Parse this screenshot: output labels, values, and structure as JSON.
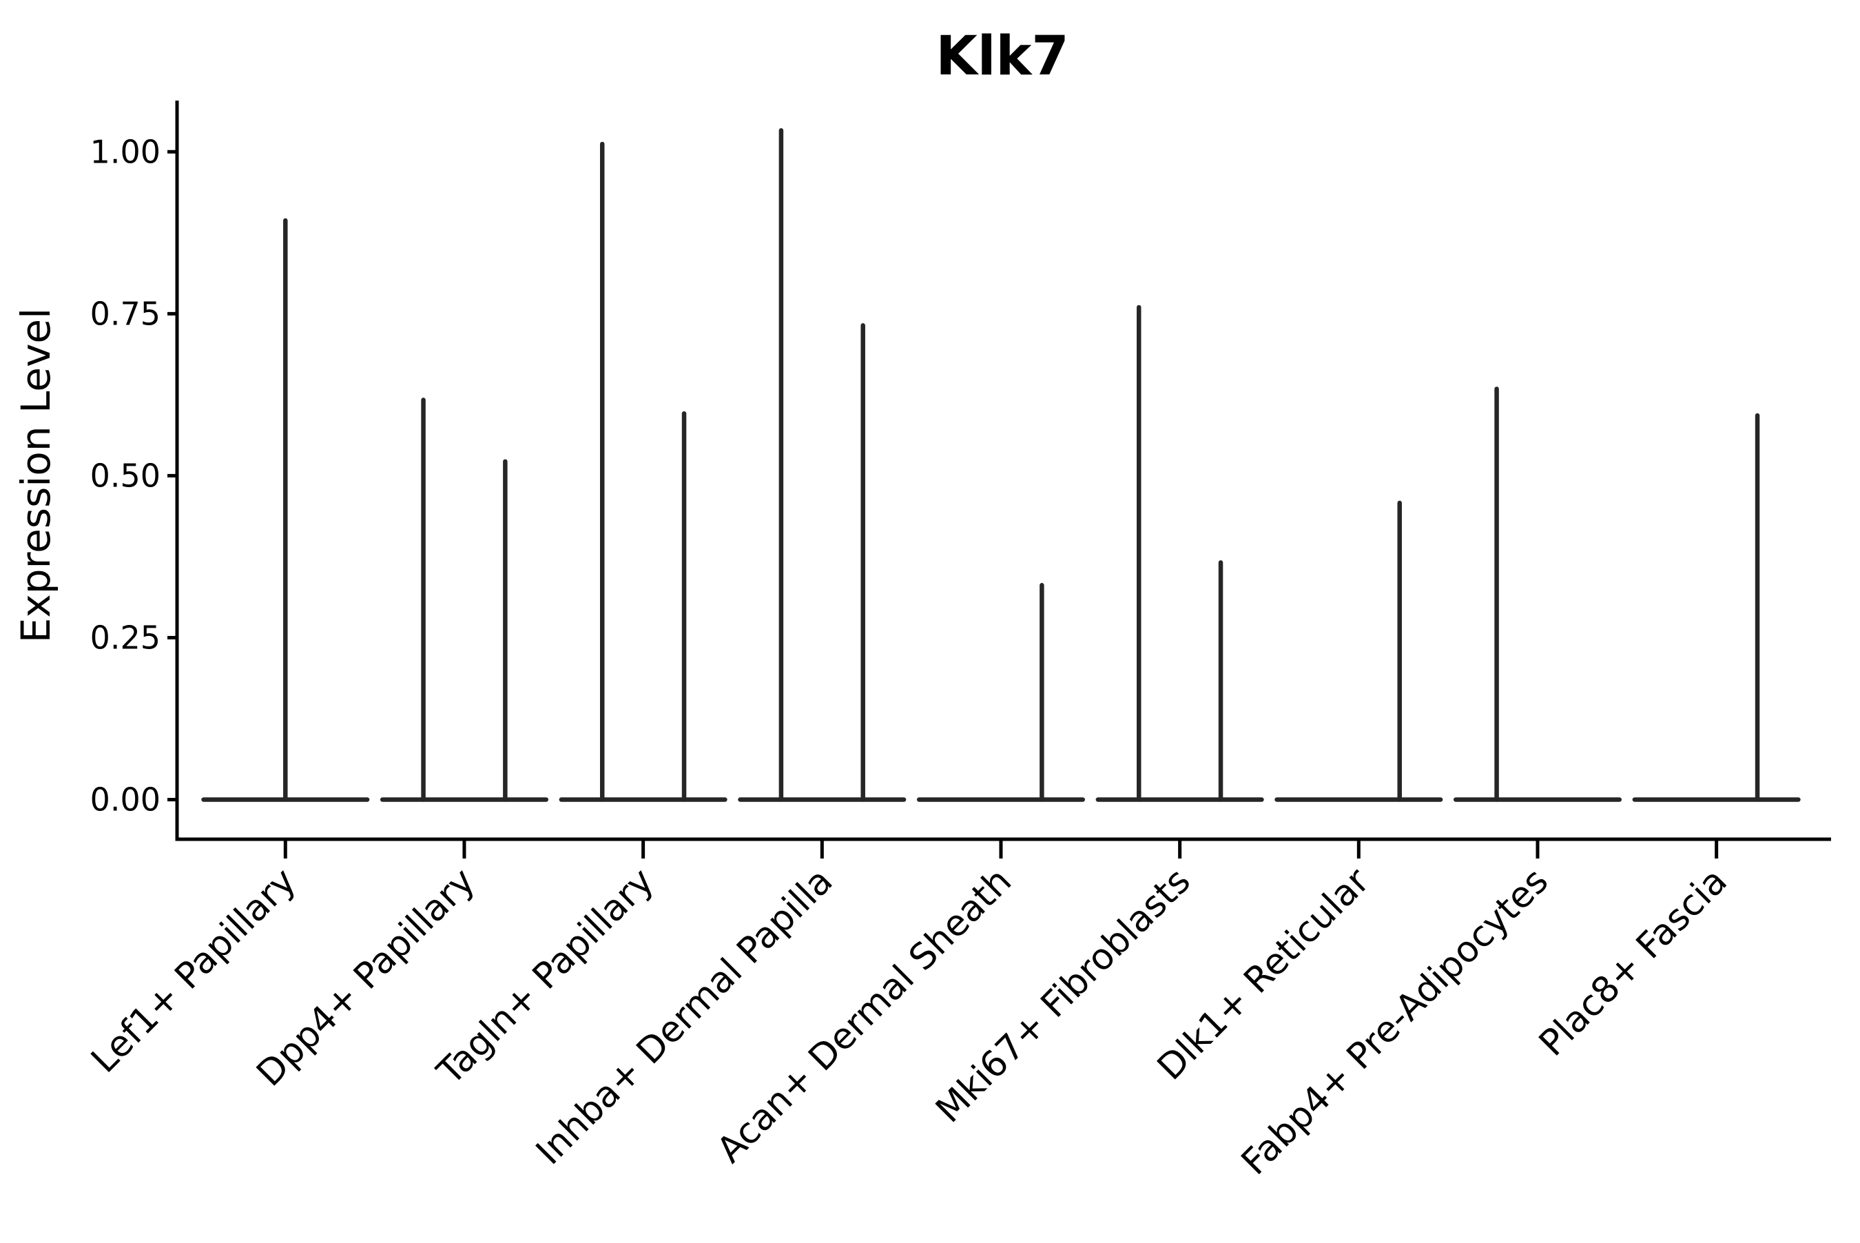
{
  "figure": {
    "background": "#ffffff",
    "axis_color": "#000000",
    "violin_color": "#262626",
    "text_color": "#000000"
  },
  "chart_data": {
    "type": "violin",
    "title": "Klk7",
    "xlabel": "",
    "ylabel": "Expression Level",
    "ylim": [
      -0.06,
      1.08
    ],
    "grid": false,
    "legend": null,
    "yticks": [
      0.0,
      0.25,
      0.5,
      0.75,
      1.0
    ],
    "ytick_labels": [
      "0.00",
      "0.25",
      "0.50",
      "0.75",
      "1.00"
    ],
    "categories": [
      "Lef1+ Papillary",
      "Dpp4+ Papillary",
      "Tagln+ Papillary",
      "Inhba+ Dermal Papilla",
      "Acan+ Dermal Sheath",
      "Mki67+ Fibroblasts",
      "Dlk1+ Reticular",
      "Fabp4+ Pre-Adipocytes",
      "Plac8+ Fascia"
    ],
    "series": [
      {
        "category": "Lef1+ Papillary",
        "baseline": 0.0,
        "spikes": [
          {
            "offset_frac": 0.0,
            "max": 0.894
          }
        ]
      },
      {
        "category": "Dpp4+ Papillary",
        "baseline": 0.0,
        "spikes": [
          {
            "offset_frac": -0.25,
            "max": 0.617
          },
          {
            "offset_frac": 0.25,
            "max": 0.522
          }
        ]
      },
      {
        "category": "Tagln+ Papillary",
        "baseline": 0.0,
        "spikes": [
          {
            "offset_frac": -0.25,
            "max": 1.012
          },
          {
            "offset_frac": 0.25,
            "max": 0.596
          }
        ]
      },
      {
        "category": "Inhba+ Dermal Papilla",
        "baseline": 0.0,
        "spikes": [
          {
            "offset_frac": -0.25,
            "max": 1.033
          },
          {
            "offset_frac": 0.25,
            "max": 0.732
          }
        ]
      },
      {
        "category": "Acan+ Dermal Sheath",
        "baseline": 0.0,
        "spikes": [
          {
            "offset_frac": 0.25,
            "max": 0.331
          }
        ]
      },
      {
        "category": "Mki67+ Fibroblasts",
        "baseline": 0.0,
        "spikes": [
          {
            "offset_frac": -0.25,
            "max": 0.76
          },
          {
            "offset_frac": 0.25,
            "max": 0.366
          }
        ]
      },
      {
        "category": "Dlk1+ Reticular",
        "baseline": 0.0,
        "spikes": [
          {
            "offset_frac": 0.25,
            "max": 0.458
          }
        ]
      },
      {
        "category": "Fabp4+ Pre-Adipocytes",
        "baseline": 0.0,
        "spikes": [
          {
            "offset_frac": -0.25,
            "max": 0.634
          }
        ]
      },
      {
        "category": "Plac8+ Fascia",
        "baseline": 0.0,
        "spikes": [
          {
            "offset_frac": 0.25,
            "max": 0.593
          }
        ]
      }
    ]
  }
}
